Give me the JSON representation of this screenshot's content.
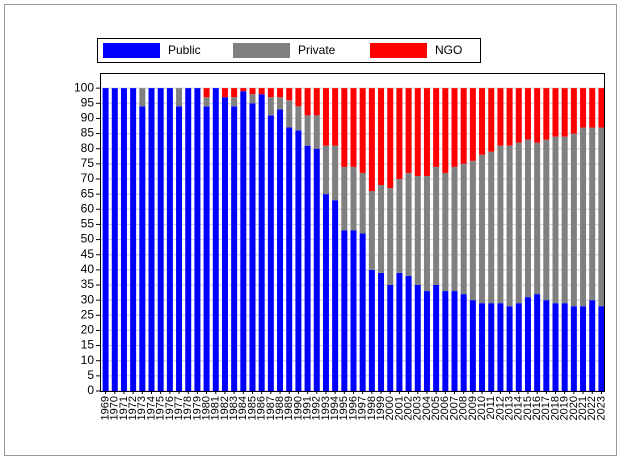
{
  "chart_data": {
    "type": "stacked_bar",
    "categories": [
      "1969",
      "1970",
      "1971",
      "1972",
      "1973",
      "1974",
      "1975",
      "1976",
      "1977",
      "1978",
      "1979",
      "1980",
      "1981",
      "1982",
      "1983",
      "1984",
      "1985",
      "1986",
      "1987",
      "1988",
      "1989",
      "1990",
      "1991",
      "1992",
      "1993",
      "1994",
      "1995",
      "1996",
      "1997",
      "1998",
      "1999",
      "2000",
      "2001",
      "2002",
      "2003",
      "2004",
      "2005",
      "2006",
      "2007",
      "2008",
      "2009",
      "2010",
      "2011",
      "2012",
      "2013",
      "2014",
      "2015",
      "2016",
      "2017",
      "2018",
      "2019",
      "2020",
      "2021",
      "2022",
      "2023"
    ],
    "series": [
      {
        "name": "Public",
        "color": "#0000ff",
        "values": [
          100,
          100,
          100,
          100,
          94,
          100,
          100,
          100,
          94,
          100,
          100,
          94,
          100,
          97,
          94,
          99,
          95,
          98,
          91,
          93,
          87,
          86,
          81,
          80,
          65,
          63,
          53,
          53,
          52,
          40,
          39,
          35,
          39,
          38,
          35,
          33,
          35,
          33,
          33,
          32,
          30,
          29,
          29,
          29,
          28,
          29,
          31,
          32,
          30,
          29,
          29,
          28,
          28,
          30,
          28
        ]
      },
      {
        "name": "Private",
        "color": "#808080",
        "values": [
          0,
          0,
          0,
          0,
          6,
          0,
          0,
          0,
          6,
          0,
          0,
          3,
          0,
          0,
          3,
          0,
          3,
          0,
          6,
          4,
          9,
          8,
          10,
          11,
          16,
          18,
          21,
          21,
          20,
          26,
          29,
          32,
          31,
          34,
          36,
          38,
          39,
          39,
          41,
          43,
          46,
          49,
          50,
          52,
          53,
          53,
          52,
          50,
          53,
          55,
          55,
          57,
          59,
          57,
          59
        ]
      },
      {
        "name": "NGO",
        "color": "#ff0000",
        "values": [
          0,
          0,
          0,
          0,
          0,
          0,
          0,
          0,
          0,
          0,
          0,
          3,
          0,
          3,
          3,
          1,
          2,
          2,
          3,
          3,
          4,
          6,
          9,
          9,
          19,
          19,
          26,
          26,
          28,
          34,
          32,
          33,
          30,
          28,
          29,
          29,
          26,
          28,
          26,
          25,
          24,
          22,
          21,
          19,
          19,
          18,
          17,
          18,
          17,
          16,
          16,
          15,
          13,
          13,
          13
        ]
      }
    ],
    "ylim": [
      0,
      105
    ],
    "yticks": [
      0,
      5,
      10,
      15,
      20,
      25,
      30,
      35,
      40,
      45,
      50,
      55,
      60,
      65,
      70,
      75,
      80,
      85,
      90,
      95,
      100
    ],
    "grid": true
  }
}
